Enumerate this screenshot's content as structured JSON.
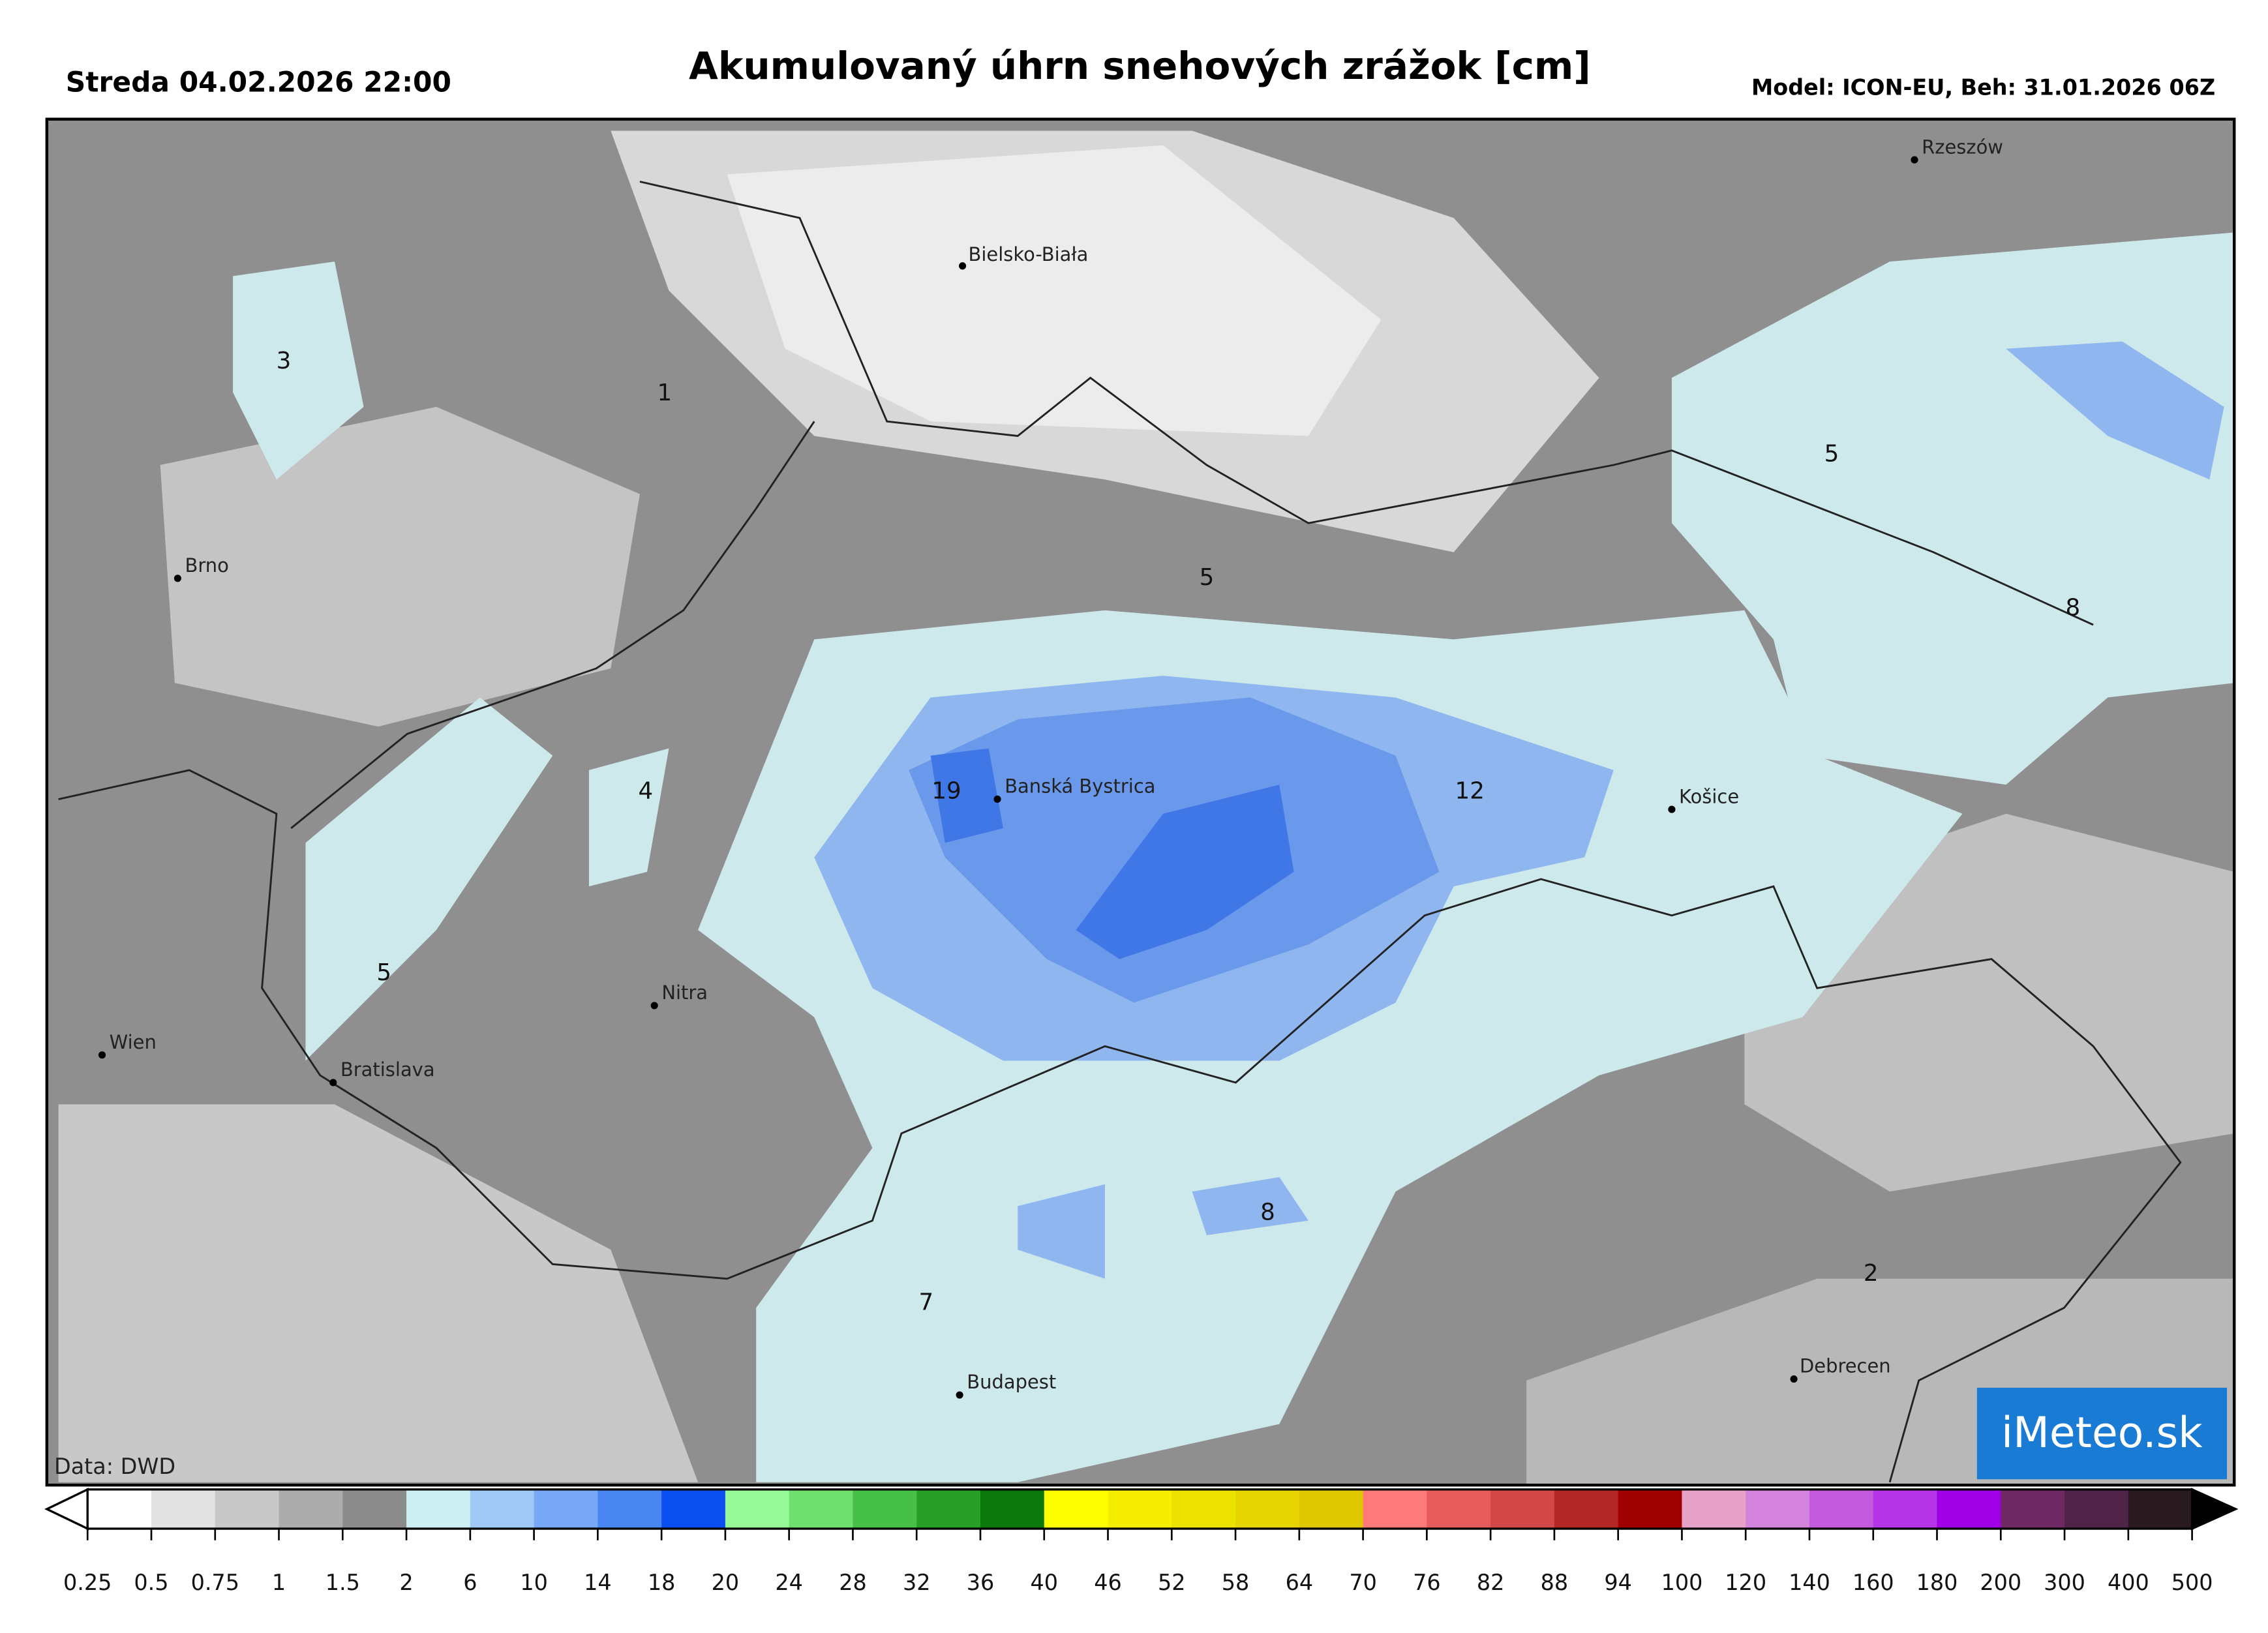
{
  "header": {
    "left": "Streda 04.02.2026 22:00",
    "title": "Akumulovaný úhrn snehových zrážok [cm]",
    "right": "Model: ICON-EU, Beh: 31.01.2026 06Z"
  },
  "map": {
    "cities": [
      "Rzeszów",
      "Bielsko-Biała",
      "Brno",
      "Banská Bystrica",
      "Košice",
      "Nitra",
      "Wien",
      "Bratislava",
      "Budapest",
      "Debrecen"
    ],
    "contour_labels": [
      "3",
      "1",
      "5",
      "5",
      "8",
      "4",
      "19",
      "12",
      "5",
      "8",
      "7",
      "2"
    ],
    "credit": "Data: DWD",
    "logo": "iMeteo.sk"
  },
  "colorbar": {
    "ticks": [
      0.25,
      0.5,
      0.75,
      1,
      1.5,
      2,
      6,
      10,
      14,
      18,
      20,
      24,
      28,
      32,
      36,
      40,
      46,
      52,
      58,
      64,
      70,
      76,
      82,
      88,
      94,
      100,
      120,
      140,
      160,
      180,
      200,
      300,
      400,
      500
    ],
    "colors": [
      "#ffffff",
      "#e2e2e2",
      "#c8c8c8",
      "#acacac",
      "#8c8c8c",
      "#cdeef2",
      "#a0c8f5",
      "#78a8f5",
      "#4a86f2",
      "#0a50f0",
      "#96f896",
      "#6ee06e",
      "#46c046",
      "#28a028",
      "#0a780a",
      "#ffff00",
      "#f5ee00",
      "#ece200",
      "#e6d400",
      "#e0c800",
      "#ff7a7a",
      "#e65c5c",
      "#d24848",
      "#b42828",
      "#a00000",
      "#e6a2c8",
      "#d484dc",
      "#c45adc",
      "#b434e6",
      "#a000e6",
      "#6e2864",
      "#502349",
      "#281a1e"
    ]
  }
}
